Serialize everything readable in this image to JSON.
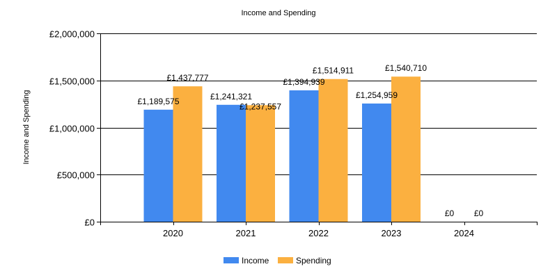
{
  "chart_data": {
    "type": "bar",
    "title": "Income and Spending",
    "xlabel": "",
    "ylabel": "Income and Spending",
    "categories": [
      "2020",
      "2021",
      "2022",
      "2023",
      "2024"
    ],
    "series": [
      {
        "name": "Income",
        "color": "#4189EF",
        "values": [
          1189575,
          1241321,
          1394939,
          1254959,
          0
        ],
        "labels": [
          "£1,189,575",
          "£1,241,321",
          "£1,394,939",
          "£1,254,959",
          "£0"
        ]
      },
      {
        "name": "Spending",
        "color": "#FBB040",
        "values": [
          1437777,
          1237557,
          1514911,
          1540710,
          0
        ],
        "labels": [
          "£1,437,777",
          "£1,237,557",
          "£1,514,911",
          "£1,540,710",
          "£0"
        ]
      }
    ],
    "ylim": [
      0,
      2000000
    ],
    "yticks": [
      0,
      500000,
      1000000,
      1500000,
      2000000
    ],
    "ytick_labels": [
      "£0",
      "£500,000",
      "£1,000,000",
      "£1,500,000",
      "£2,000,000"
    ],
    "grid": true,
    "legend_position": "bottom-center"
  }
}
